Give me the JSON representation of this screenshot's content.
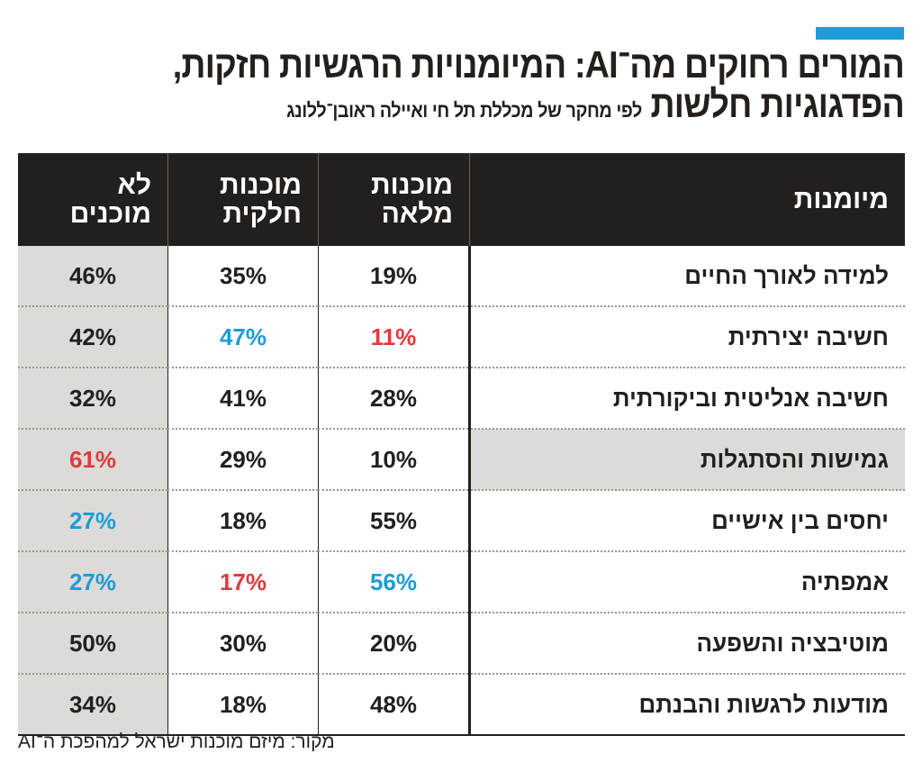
{
  "title": {
    "line1": "המורים רחוקים מה־AI: המיומנויות הרגשיות חזקות,",
    "line2": "הפדגוגיות חלשות",
    "subtitle": "לפי מחקר של מכללת תל חי ואיילה ראובן־ללונג"
  },
  "colors": {
    "accent": "#1e9cd7",
    "highlight_blue": "#1e9cd7",
    "highlight_red": "#e03a3e",
    "header_bg": "#231f1c",
    "shade": "#dcdbd8"
  },
  "table": {
    "headers": [
      "מיומנות",
      "מוכנות מלאה",
      "מוכנות חלקית",
      "לא מוכנים"
    ],
    "rows": [
      {
        "skill": "למידה לאורך החיים",
        "full": "19%",
        "partial": "35%",
        "none": "46%"
      },
      {
        "skill": "חשיבה יצירתית",
        "full": "11%",
        "partial": "47%",
        "none": "42%"
      },
      {
        "skill": "חשיבה אנליטית וביקורתית",
        "full": "28%",
        "partial": "41%",
        "none": "32%"
      },
      {
        "skill": "גמישות והסתגלות",
        "full": "10%",
        "partial": "29%",
        "none": "61%"
      },
      {
        "skill": "יחסים בין אישיים",
        "full": "55%",
        "partial": "18%",
        "none": "27%"
      },
      {
        "skill": "אמפתיה",
        "full": "56%",
        "partial": "17%",
        "none": "27%"
      },
      {
        "skill": "מוטיבציה והשפעה",
        "full": "20%",
        "partial": "30%",
        "none": "50%"
      },
      {
        "skill": "מודעות לרגשות והבנתם",
        "full": "48%",
        "partial": "18%",
        "none": "34%"
      }
    ]
  },
  "source": "מקור: מיזם מוכנות ישראל למהפכת ה־AI"
}
